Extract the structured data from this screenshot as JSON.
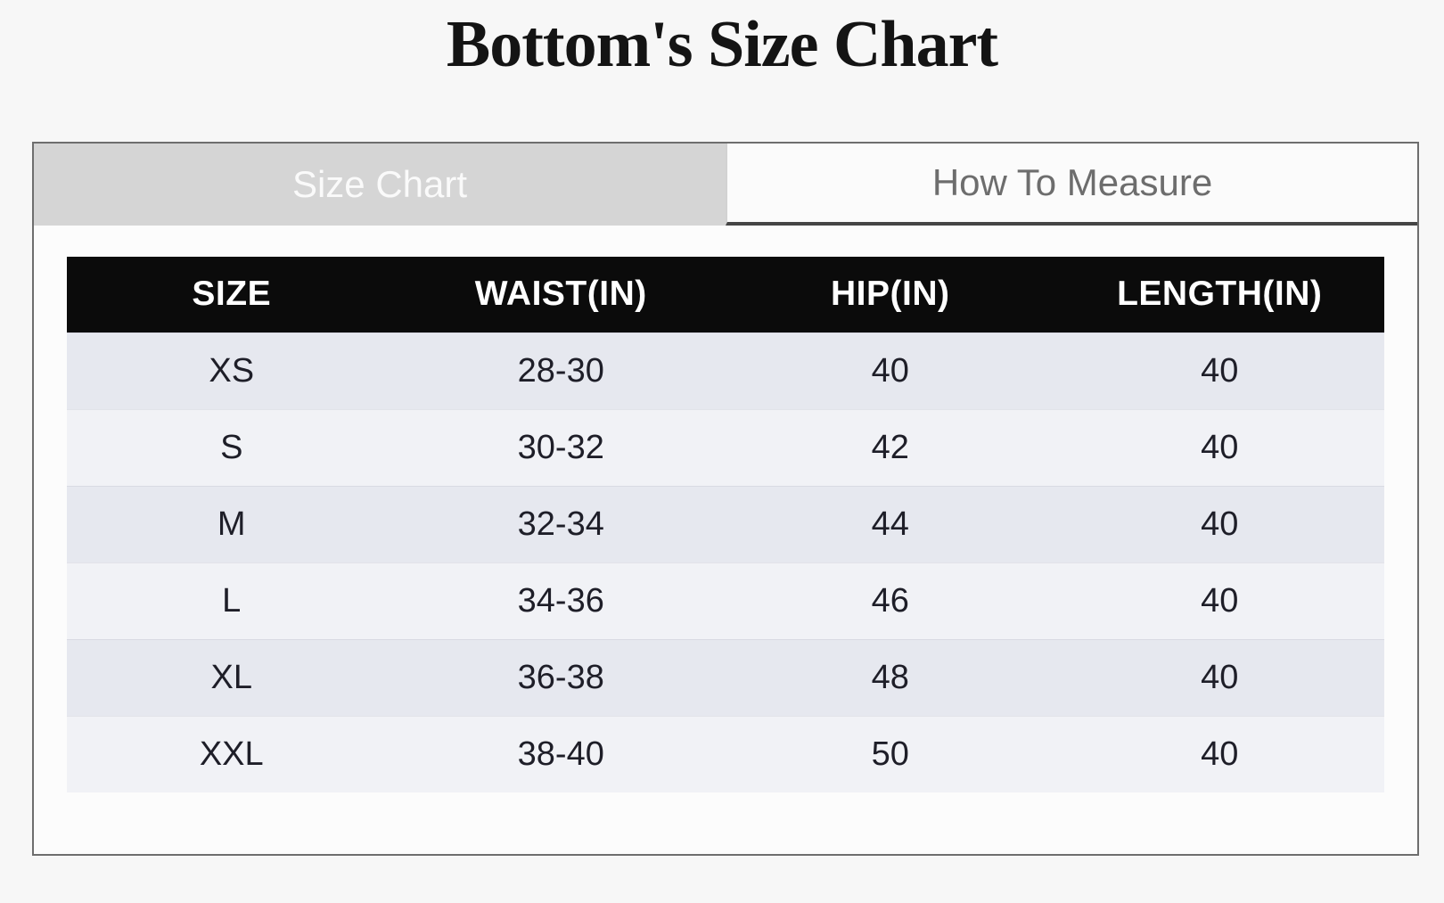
{
  "page": {
    "title": "Bottom's Size Chart"
  },
  "tabs": [
    {
      "label": "Size Chart",
      "active": true
    },
    {
      "label": "How To Measure",
      "active": false
    }
  ],
  "size_table": {
    "columns": [
      "SIZE",
      "WAIST(IN)",
      "HIP(IN)",
      "LENGTH(IN)"
    ],
    "rows": [
      [
        "XS",
        "28-30",
        "40",
        "40"
      ],
      [
        "S",
        "30-32",
        "42",
        "40"
      ],
      [
        "M",
        "32-34",
        "44",
        "40"
      ],
      [
        "L",
        "34-36",
        "46",
        "40"
      ],
      [
        "XL",
        "36-38",
        "48",
        "40"
      ],
      [
        "XXL",
        "38-40",
        "50",
        "40"
      ]
    ]
  },
  "colors": {
    "page_background": "#f7f7f7",
    "panel_background": "#fcfcfc",
    "panel_border": "#6e6e6e",
    "active_tab_background": "#d5d5d5",
    "active_tab_text": "#fafafa",
    "inactive_tab_background": "#fbfbfb",
    "inactive_tab_text": "#6d6d6d",
    "inactive_tab_underline": "#454545",
    "header_background": "#0b0b0b",
    "header_text": "#ffffff",
    "row_odd_background": "#e6e8ef",
    "row_even_background": "#f1f2f6",
    "cell_text": "#1e1e28"
  }
}
